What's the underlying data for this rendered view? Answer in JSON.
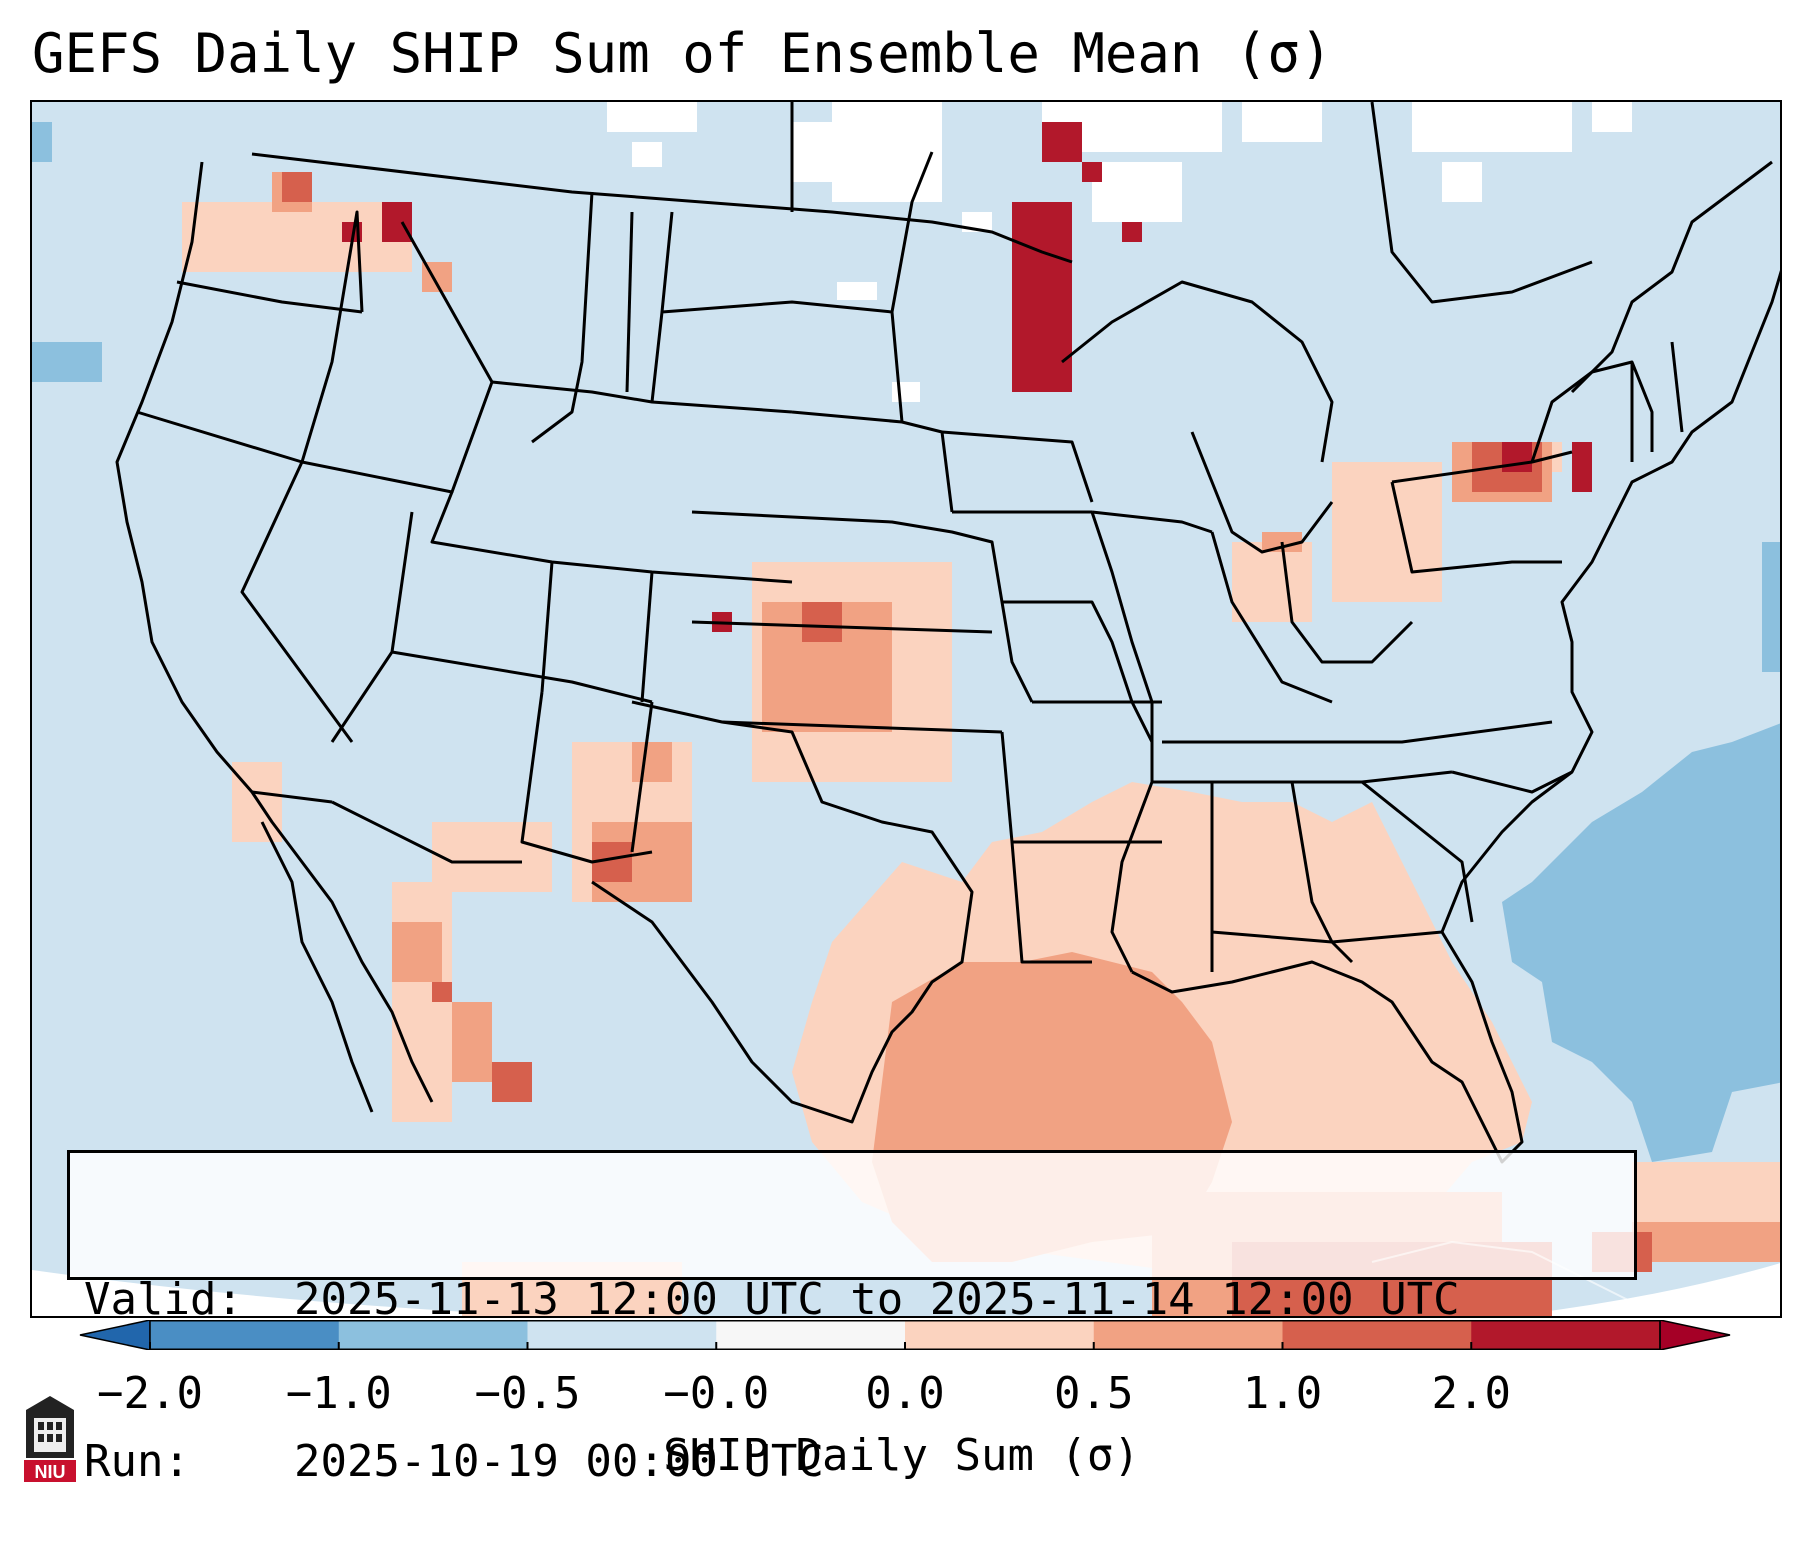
{
  "title": "GEFS Daily SHIP Sum of Ensemble Mean (σ)",
  "info": {
    "valid_label": "Valid:",
    "valid_value": "2025-11-13 12:00 UTC to 2025-11-14 12:00 UTC",
    "run_label": "Run:",
    "run_value": "2025-10-19 00:00 UTC"
  },
  "colorbar": {
    "label": "SHIP Daily Sum (σ)",
    "ticks": [
      "−2.0",
      "−1.0",
      "−0.5",
      "−0.0",
      "0.0",
      "0.5",
      "1.0",
      "2.0"
    ],
    "bin_colors": [
      "#4a8ec4",
      "#8cc0de",
      "#cfe3f0",
      "#f7f7f7",
      "#fbd3bf",
      "#f1a283",
      "#d6604d",
      "#b2182b"
    ],
    "extend_low_color": "#2166ac",
    "extend_high_color": "#a50026"
  },
  "colors": {
    "ocean_neg": "#cfe3f0",
    "ocean_strong_neg": "#8cc0de",
    "land_near_zero": "#cfe3f0",
    "snow_white": "#ffffff",
    "pos_light": "#fbd3bf",
    "pos_med": "#f1a283",
    "pos_strong": "#d6604d",
    "pos_max": "#b2182b"
  },
  "logo": {
    "icon": "niu-logo-icon",
    "text": "NIU"
  }
}
